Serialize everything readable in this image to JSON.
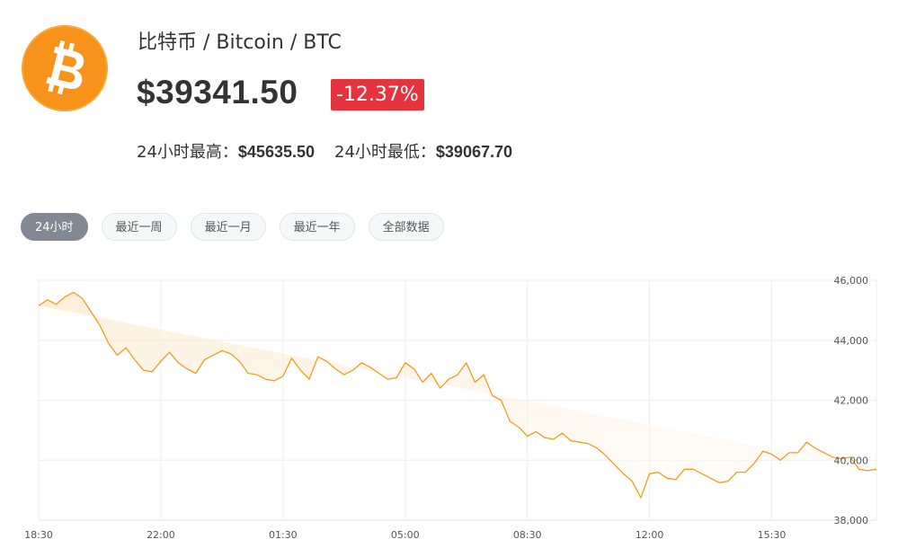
{
  "coin": {
    "title": "比特币 / Bitcoin / BTC",
    "price": "$39341.50",
    "change": "-12.37%",
    "high_label": "24小时最高：",
    "high_value": "$45635.50",
    "low_label": "24小时最低：",
    "low_value": "$39067.70",
    "logo_icon": "bitcoin-icon",
    "logo_color": "#f7931a"
  },
  "tabs": [
    {
      "label": "24小时",
      "active": true
    },
    {
      "label": "最近一周",
      "active": false
    },
    {
      "label": "最近一月",
      "active": false
    },
    {
      "label": "最近一年",
      "active": false
    },
    {
      "label": "全部数据",
      "active": false
    }
  ],
  "colors": {
    "line": "#f09c1c",
    "badge_negative": "#e5343d",
    "tab_active": "#838895"
  },
  "chart_data": {
    "type": "area",
    "title": "",
    "xlabel": "",
    "ylabel": "",
    "x_ticks": [
      "18:30",
      "22:00",
      "01:30",
      "05:00",
      "08:30",
      "12:00",
      "15:30"
    ],
    "y_ticks": [
      "46,000",
      "44,000",
      "42,000",
      "40,000",
      "38,000"
    ],
    "ylim": [
      38000,
      46000
    ],
    "grid": true,
    "y_axis_position": "right",
    "series": [
      {
        "x_hours_from_start": [
          0,
          0.25,
          0.5,
          0.75,
          1,
          1.25,
          1.5,
          1.75,
          2,
          2.25,
          2.5,
          2.75,
          3,
          3.25,
          3.5,
          3.75,
          4,
          4.25,
          4.5,
          4.75,
          5,
          5.25,
          5.5,
          5.75,
          6,
          6.25,
          6.5,
          6.75,
          7,
          7.25,
          7.5,
          7.75,
          8,
          8.25,
          8.5,
          8.75,
          9,
          9.25,
          9.5,
          9.75,
          10,
          10.25,
          10.5,
          10.75,
          11,
          11.25,
          11.5,
          11.75,
          12,
          12.25,
          12.5,
          12.75,
          13,
          13.25,
          13.5,
          13.75,
          14,
          14.25,
          14.5,
          14.75,
          15,
          15.25,
          15.5,
          15.75,
          16,
          16.25,
          16.5,
          16.75,
          17,
          17.25,
          17.5,
          17.75,
          18,
          18.25,
          18.5,
          18.75,
          19,
          19.25,
          19.5,
          19.75,
          20,
          20.25,
          20.5,
          20.75,
          21,
          21.25,
          21.5,
          21.75,
          22,
          22.25,
          22.5,
          22.75,
          23,
          23.25,
          23.5,
          23.75,
          24
        ],
        "values": [
          45150,
          45350,
          45200,
          45450,
          45600,
          45400,
          44950,
          44500,
          43900,
          43500,
          43750,
          43350,
          43000,
          42950,
          43300,
          43600,
          43250,
          43050,
          42900,
          43350,
          43500,
          43650,
          43550,
          43300,
          42900,
          42850,
          42700,
          42650,
          42800,
          43400,
          43000,
          42700,
          43450,
          43300,
          43050,
          42850,
          43000,
          43250,
          43100,
          42900,
          42700,
          42750,
          43250,
          43050,
          42600,
          42900,
          42400,
          42700,
          42850,
          43250,
          42600,
          42850,
          42150,
          42000,
          41300,
          41100,
          40800,
          40950,
          40750,
          40700,
          40900,
          40650,
          40600,
          40550,
          40400,
          40150,
          39850,
          39550,
          39300,
          38750,
          39550,
          39600,
          39400,
          39350,
          39700,
          39700,
          39550,
          39400,
          39250,
          39300,
          39600,
          39600,
          39900,
          40300,
          40200,
          40000,
          40250,
          40250,
          40600,
          40400,
          40250,
          40100,
          40050,
          40100,
          39700,
          39650,
          39700,
          39650,
          39600
        ],
        "end_value": 39600
      }
    ]
  }
}
